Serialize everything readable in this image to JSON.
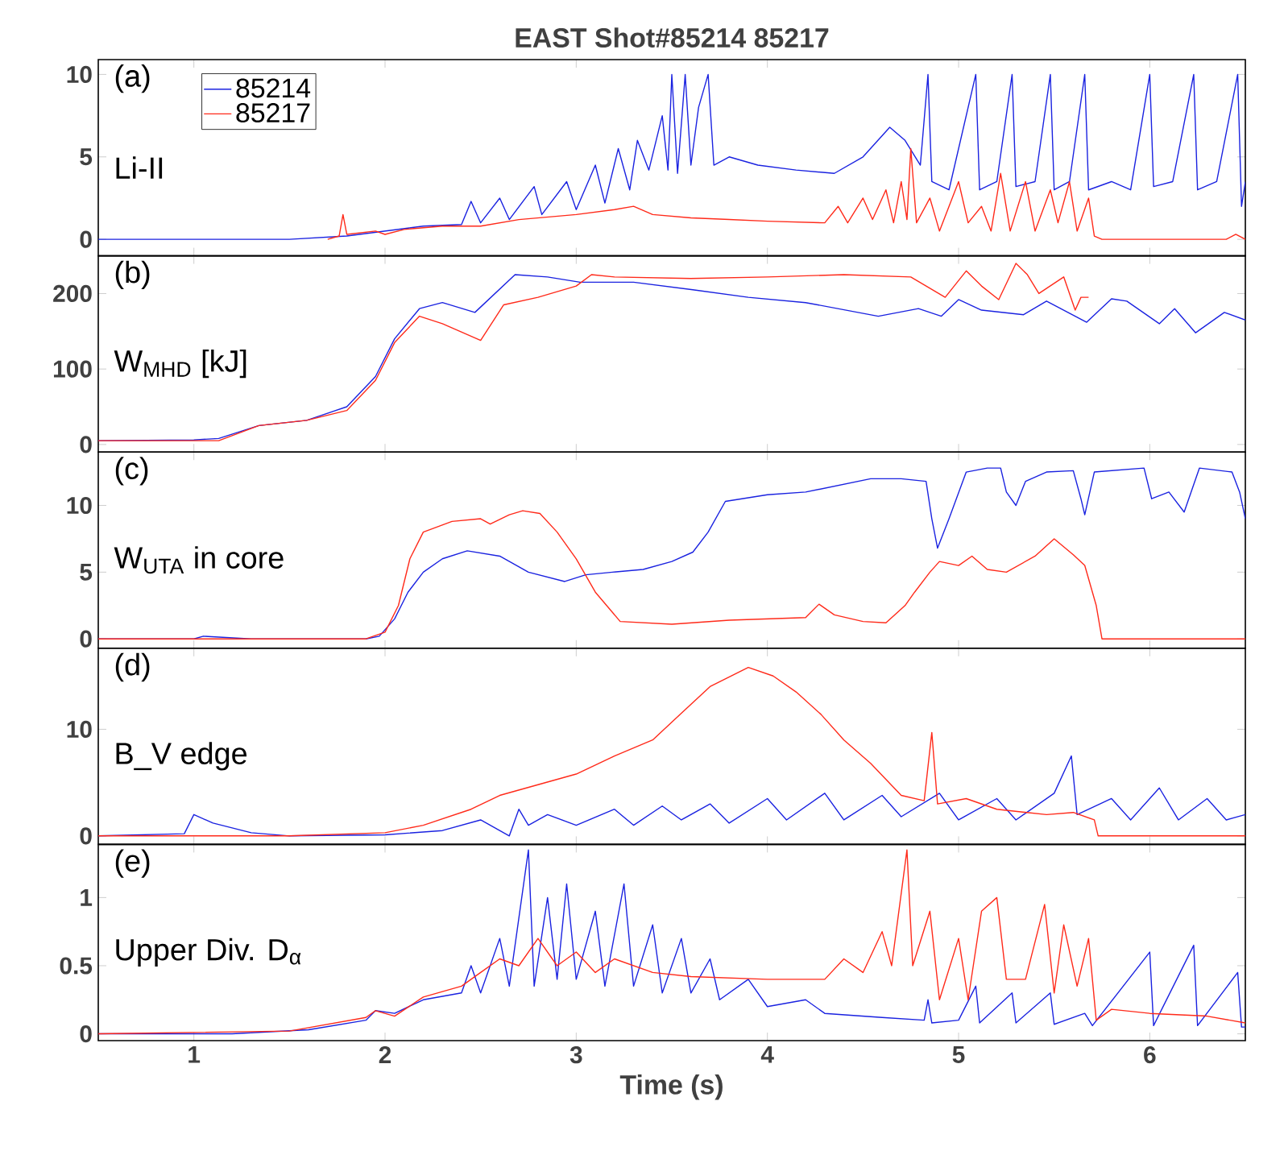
{
  "chart_data": [
    {
      "type": "line",
      "title": "EAST Shot#85214  85217",
      "xlim": [
        0.5,
        6.5
      ],
      "xticks": [
        1,
        2,
        3,
        4,
        5,
        6
      ],
      "ylim": [
        -1,
        10.9
      ],
      "yticks": [
        0,
        5,
        10
      ],
      "tick_labels": "y",
      "legend": "top left",
      "annotations": [
        "(a)",
        "Li-II"
      ],
      "series": [
        {
          "name": "85214",
          "color": "#1a22e0",
          "x": [
            0.5,
            1.5,
            1.8,
            2.0,
            2.2,
            2.4,
            2.45,
            2.5,
            2.6,
            2.65,
            2.78,
            2.82,
            2.95,
            3.0,
            3.1,
            3.15,
            3.22,
            3.28,
            3.32,
            3.38,
            3.45,
            3.48,
            3.5,
            3.53,
            3.57,
            3.6,
            3.64,
            3.69,
            3.72,
            3.8,
            3.95,
            4.15,
            4.35,
            4.5,
            4.64,
            4.72,
            4.8,
            4.84,
            4.86,
            4.95,
            5.09,
            5.11,
            5.2,
            5.28,
            5.3,
            5.4,
            5.48,
            5.5,
            5.58,
            5.66,
            5.68,
            5.8,
            5.9,
            6.0,
            6.02,
            6.12,
            6.23,
            6.25,
            6.35,
            6.46,
            6.48,
            6.5
          ],
          "values": [
            0,
            0,
            0.2,
            0.5,
            0.8,
            0.9,
            2.3,
            1,
            2.5,
            1.2,
            3.2,
            1.5,
            3.5,
            1.8,
            4.5,
            2.2,
            5.5,
            3,
            6,
            4.2,
            7.5,
            4.2,
            10,
            4,
            10,
            4.5,
            8,
            10,
            4.5,
            5,
            4.5,
            4.2,
            4,
            5,
            6.8,
            6,
            4.5,
            10,
            3.5,
            3,
            10,
            3,
            3.5,
            10,
            3.2,
            3.5,
            10,
            3,
            3.5,
            10,
            3,
            3.5,
            3,
            10,
            3.2,
            3.5,
            10,
            3,
            3.5,
            10,
            2,
            3.5
          ]
        },
        {
          "name": "85217",
          "color": "#ff2a1a",
          "x": [
            1.7,
            1.76,
            1.78,
            1.8,
            1.95,
            2.0,
            2.1,
            2.3,
            2.5,
            2.7,
            3.0,
            3.2,
            3.3,
            3.4,
            3.6,
            3.8,
            4.0,
            4.3,
            4.37,
            4.42,
            4.5,
            4.55,
            4.62,
            4.66,
            4.7,
            4.73,
            4.75,
            4.78,
            4.85,
            4.9,
            5.0,
            5.05,
            5.12,
            5.17,
            5.22,
            5.27,
            5.35,
            5.4,
            5.48,
            5.52,
            5.58,
            5.62,
            5.68,
            5.71,
            5.75,
            6.4,
            6.45,
            6.5
          ],
          "values": [
            0,
            0.2,
            1.5,
            0.3,
            0.5,
            0.3,
            0.6,
            0.8,
            0.8,
            1.2,
            1.5,
            1.8,
            2,
            1.5,
            1.3,
            1.2,
            1.1,
            1.0,
            2,
            1,
            2.5,
            1.2,
            3,
            1,
            3.5,
            1.2,
            5.5,
            1,
            2.5,
            0.5,
            3.5,
            1,
            2,
            0.5,
            4,
            0.5,
            3.5,
            0.5,
            3,
            1,
            3.5,
            0.5,
            2.5,
            0.2,
            0,
            0,
            0.3,
            0
          ]
        }
      ]
    },
    {
      "type": "line",
      "xlim": [
        0.5,
        6.5
      ],
      "xticks": [
        1,
        2,
        3,
        4,
        5,
        6
      ],
      "ylim": [
        -10,
        250
      ],
      "yticks": [
        0,
        100,
        200
      ],
      "tick_labels": "y",
      "annotations": [
        "(b)",
        "W$_{MHD}$ [kJ]"
      ],
      "series": [
        {
          "color": "#1a22e0",
          "x": [
            0.5,
            1.0,
            1.13,
            1.34,
            1.59,
            1.8,
            1.95,
            2.05,
            2.18,
            2.3,
            2.47,
            2.68,
            2.85,
            3.02,
            3.3,
            3.61,
            3.9,
            4.2,
            4.58,
            4.79,
            4.91,
            5.0,
            5.12,
            5.34,
            5.46,
            5.67,
            5.8,
            5.88,
            6.05,
            6.13,
            6.24,
            6.39,
            6.5
          ],
          "values": [
            5,
            6,
            8,
            25,
            32,
            50,
            90,
            140,
            180,
            188,
            175,
            225,
            222,
            215,
            215,
            205,
            195,
            188,
            170,
            180,
            170,
            192,
            178,
            172,
            190,
            162,
            193,
            190,
            160,
            180,
            148,
            175,
            165
          ]
        },
        {
          "color": "#ff2a1a",
          "x": [
            0.5,
            1.13,
            1.34,
            1.59,
            1.8,
            1.95,
            2.05,
            2.18,
            2.3,
            2.5,
            2.62,
            2.8,
            3.0,
            3.08,
            3.2,
            3.6,
            4.0,
            4.4,
            4.75,
            4.93,
            5.04,
            5.12,
            5.21,
            5.3,
            5.36,
            5.42,
            5.55,
            5.61,
            5.64,
            5.68
          ],
          "values": [
            5,
            5,
            25,
            32,
            45,
            85,
            135,
            170,
            160,
            138,
            185,
            195,
            210,
            225,
            222,
            220,
            222,
            225,
            222,
            195,
            230,
            210,
            192,
            240,
            225,
            200,
            222,
            178,
            195,
            195
          ]
        }
      ]
    },
    {
      "type": "line",
      "xlim": [
        0.5,
        6.5
      ],
      "xticks": [
        1,
        2,
        3,
        4,
        5,
        6
      ],
      "ylim": [
        -0.7,
        14
      ],
      "yticks": [
        0,
        5,
        10
      ],
      "tick_labels": "y",
      "annotations": [
        "(c)",
        "W$_{UTA}$ in core"
      ],
      "series": [
        {
          "color": "#1a22e0",
          "x": [
            0.5,
            1.0,
            1.05,
            1.3,
            1.9,
            1.97,
            2.05,
            2.12,
            2.2,
            2.3,
            2.43,
            2.6,
            2.75,
            2.94,
            3.05,
            3.19,
            3.35,
            3.5,
            3.61,
            3.69,
            3.78,
            4.0,
            4.2,
            4.54,
            4.7,
            4.83,
            4.86,
            4.89,
            4.95,
            5.04,
            5.15,
            5.22,
            5.25,
            5.3,
            5.35,
            5.46,
            5.6,
            5.64,
            5.66,
            5.71,
            5.97,
            6.01,
            6.1,
            6.18,
            6.26,
            6.43,
            6.47,
            6.5
          ],
          "values": [
            0,
            0,
            0.2,
            0,
            0,
            0.2,
            1.5,
            3.5,
            5,
            6,
            6.6,
            6.2,
            5,
            4.3,
            4.8,
            5,
            5.2,
            5.8,
            6.5,
            8,
            10.3,
            10.8,
            11,
            12,
            12,
            11.8,
            9,
            6.8,
            9,
            12.5,
            12.8,
            12.8,
            11,
            10,
            11.8,
            12.5,
            12.6,
            10.5,
            9.3,
            12.5,
            12.8,
            10.5,
            11,
            9.5,
            12.8,
            12.5,
            11,
            9
          ]
        },
        {
          "color": "#ff2a1a",
          "x": [
            0.5,
            1.9,
            2.0,
            2.07,
            2.13,
            2.2,
            2.35,
            2.5,
            2.55,
            2.65,
            2.72,
            2.81,
            2.9,
            3.0,
            3.1,
            3.23,
            3.5,
            3.8,
            4.2,
            4.27,
            4.35,
            4.5,
            4.62,
            4.72,
            4.77,
            4.85,
            4.9,
            5.0,
            5.07,
            5.15,
            5.25,
            5.4,
            5.5,
            5.6,
            5.66,
            5.72,
            5.75,
            6.5
          ],
          "values": [
            0,
            0,
            0.5,
            2.5,
            6,
            8,
            8.8,
            9,
            8.6,
            9.3,
            9.6,
            9.4,
            8,
            6,
            3.5,
            1.3,
            1.1,
            1.4,
            1.6,
            2.6,
            1.8,
            1.3,
            1.2,
            2.5,
            3.5,
            5,
            5.8,
            5.5,
            6.2,
            5.2,
            5,
            6.2,
            7.5,
            6.3,
            5.5,
            2.5,
            0,
            0
          ]
        }
      ]
    },
    {
      "type": "line",
      "xlim": [
        0.5,
        6.5
      ],
      "xticks": [
        1,
        2,
        3,
        4,
        5,
        6
      ],
      "ylim": [
        -0.8,
        17.6
      ],
      "yticks": [
        0,
        10
      ],
      "tick_labels": "y",
      "annotations": [
        "(d)",
        "B_V edge"
      ],
      "series": [
        {
          "color": "#1a22e0",
          "x": [
            0.5,
            0.95,
            1.0,
            1.1,
            1.3,
            1.5,
            2.0,
            2.3,
            2.5,
            2.65,
            2.7,
            2.75,
            2.85,
            3.0,
            3.2,
            3.3,
            3.45,
            3.55,
            3.7,
            3.8,
            4.0,
            4.1,
            4.3,
            4.4,
            4.6,
            4.7,
            4.9,
            5.0,
            5.2,
            5.3,
            5.5,
            5.59,
            5.62,
            5.8,
            5.9,
            6.05,
            6.15,
            6.3,
            6.4,
            6.5
          ],
          "values": [
            0,
            0.2,
            2,
            1.2,
            0.3,
            0,
            0.1,
            0.5,
            1.5,
            0,
            2.5,
            1,
            2,
            1,
            2.5,
            1,
            2.8,
            1.5,
            3,
            1.2,
            3.5,
            1.5,
            4,
            1.5,
            3.8,
            1.8,
            4,
            1.5,
            3.5,
            1.5,
            4,
            7.5,
            2,
            3.5,
            1.5,
            4.5,
            1.5,
            3.5,
            1.5,
            2
          ]
        },
        {
          "color": "#ff2a1a",
          "x": [
            0.5,
            1.5,
            2.0,
            2.2,
            2.45,
            2.6,
            2.8,
            3.0,
            3.2,
            3.4,
            3.55,
            3.7,
            3.9,
            4.03,
            4.15,
            4.28,
            4.4,
            4.54,
            4.7,
            4.82,
            4.86,
            4.89,
            5.04,
            5.2,
            5.46,
            5.6,
            5.71,
            5.73,
            6.5
          ],
          "values": [
            0,
            0,
            0.3,
            1,
            2.5,
            3.8,
            4.8,
            5.8,
            7.5,
            9,
            11.5,
            14,
            15.8,
            15,
            13.5,
            11.4,
            9,
            6.8,
            3.8,
            3.3,
            9.7,
            3,
            3.5,
            2.5,
            2,
            2.2,
            1.5,
            0,
            0
          ]
        }
      ]
    },
    {
      "type": "line",
      "xlabel": "Time (s)",
      "xlim": [
        0.5,
        6.5
      ],
      "xticks": [
        1,
        2,
        3,
        4,
        5,
        6
      ],
      "ylim": [
        -0.05,
        1.39
      ],
      "yticks": [
        0,
        0.5,
        1
      ],
      "annotations": [
        "(e)",
        "Upper Div. D$_{α}$"
      ],
      "series": [
        {
          "color": "#1a22e0",
          "x": [
            0.5,
            1.2,
            1.6,
            1.9,
            1.95,
            2.05,
            2.2,
            2.4,
            2.45,
            2.5,
            2.6,
            2.65,
            2.75,
            2.78,
            2.85,
            2.9,
            2.95,
            3.0,
            3.1,
            3.15,
            3.25,
            3.3,
            3.4,
            3.45,
            3.55,
            3.6,
            3.7,
            3.75,
            3.9,
            4.0,
            4.2,
            4.3,
            4.6,
            4.82,
            4.84,
            4.86,
            5.0,
            5.09,
            5.11,
            5.28,
            5.3,
            5.48,
            5.5,
            5.66,
            5.7,
            6.0,
            6.02,
            6.23,
            6.25,
            6.46,
            6.48,
            6.5
          ],
          "values": [
            0,
            0,
            0.03,
            0.1,
            0.17,
            0.15,
            0.25,
            0.3,
            0.5,
            0.3,
            0.7,
            0.35,
            1.35,
            0.35,
            1.0,
            0.4,
            1.1,
            0.4,
            0.9,
            0.35,
            1.1,
            0.35,
            0.8,
            0.3,
            0.7,
            0.3,
            0.55,
            0.25,
            0.4,
            0.2,
            0.25,
            0.15,
            0.12,
            0.1,
            0.25,
            0.08,
            0.1,
            0.35,
            0.08,
            0.3,
            0.08,
            0.3,
            0.07,
            0.15,
            0.06,
            0.6,
            0.06,
            0.65,
            0.06,
            0.45,
            0.05,
            0.05
          ]
        },
        {
          "color": "#ff2a1a",
          "x": [
            0.5,
            1.5,
            1.9,
            1.95,
            2.05,
            2.2,
            2.4,
            2.5,
            2.6,
            2.7,
            2.8,
            2.9,
            3.0,
            3.1,
            3.2,
            3.4,
            3.6,
            4.0,
            4.3,
            4.4,
            4.5,
            4.6,
            4.65,
            4.73,
            4.76,
            4.85,
            4.9,
            5.0,
            5.05,
            5.12,
            5.2,
            5.25,
            5.35,
            5.45,
            5.5,
            5.55,
            5.62,
            5.68,
            5.72,
            5.8,
            6.0,
            6.3,
            6.5
          ],
          "values": [
            0,
            0.02,
            0.12,
            0.17,
            0.13,
            0.27,
            0.35,
            0.45,
            0.55,
            0.5,
            0.7,
            0.5,
            0.6,
            0.45,
            0.55,
            0.45,
            0.42,
            0.4,
            0.4,
            0.55,
            0.45,
            0.75,
            0.5,
            1.35,
            0.5,
            0.9,
            0.25,
            0.7,
            0.25,
            0.9,
            1.0,
            0.4,
            0.4,
            0.95,
            0.3,
            0.8,
            0.35,
            0.7,
            0.1,
            0.18,
            0.15,
            0.13,
            0.08
          ]
        }
      ]
    }
  ]
}
